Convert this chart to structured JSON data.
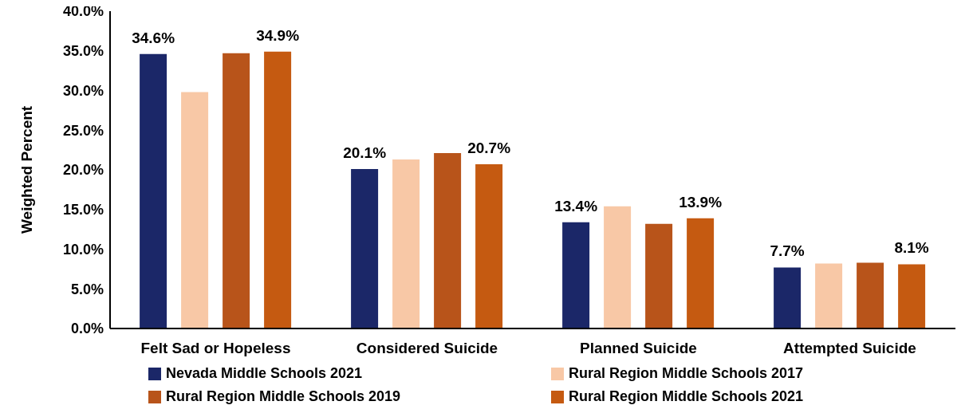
{
  "chart_data": {
    "type": "bar",
    "ylabel": "Weighted Percent",
    "categories": [
      "Felt Sad or Hopeless",
      "Considered Suicide",
      "Planned Suicide",
      "Attempted Suicide"
    ],
    "series": [
      {
        "name": "Nevada Middle Schools 2021",
        "color": "#1b2768",
        "values": [
          34.6,
          20.1,
          13.4,
          7.7
        ],
        "value_labels": [
          "34.6%",
          "20.1%",
          "13.4%",
          "7.7%"
        ]
      },
      {
        "name": "Rural Region Middle Schools 2017",
        "color": "#f8c8a6",
        "values": [
          29.8,
          21.3,
          15.4,
          8.2
        ]
      },
      {
        "name": "Rural Region Middle Schools 2019",
        "color": "#b8541a",
        "values": [
          34.7,
          22.1,
          13.2,
          8.3
        ]
      },
      {
        "name": "Rural Region Middle Schools 2021",
        "color": "#c55a11",
        "values": [
          34.9,
          20.7,
          13.9,
          8.1
        ],
        "value_labels": [
          "34.9%",
          "20.7%",
          "13.9%",
          "8.1%"
        ]
      }
    ],
    "ylim": [
      0,
      40
    ],
    "yticks": [
      {
        "value": 0,
        "label": "0.0%"
      },
      {
        "value": 5,
        "label": "5.0%"
      },
      {
        "value": 10,
        "label": "10.0%"
      },
      {
        "value": 15,
        "label": "15.0%"
      },
      {
        "value": 20,
        "label": "20.0%"
      },
      {
        "value": 25,
        "label": "25.0%"
      },
      {
        "value": 30,
        "label": "30.0%"
      },
      {
        "value": 35,
        "label": "35.0%"
      },
      {
        "value": 40,
        "label": "40.0%"
      }
    ],
    "grid": false,
    "legend": "bottom"
  }
}
